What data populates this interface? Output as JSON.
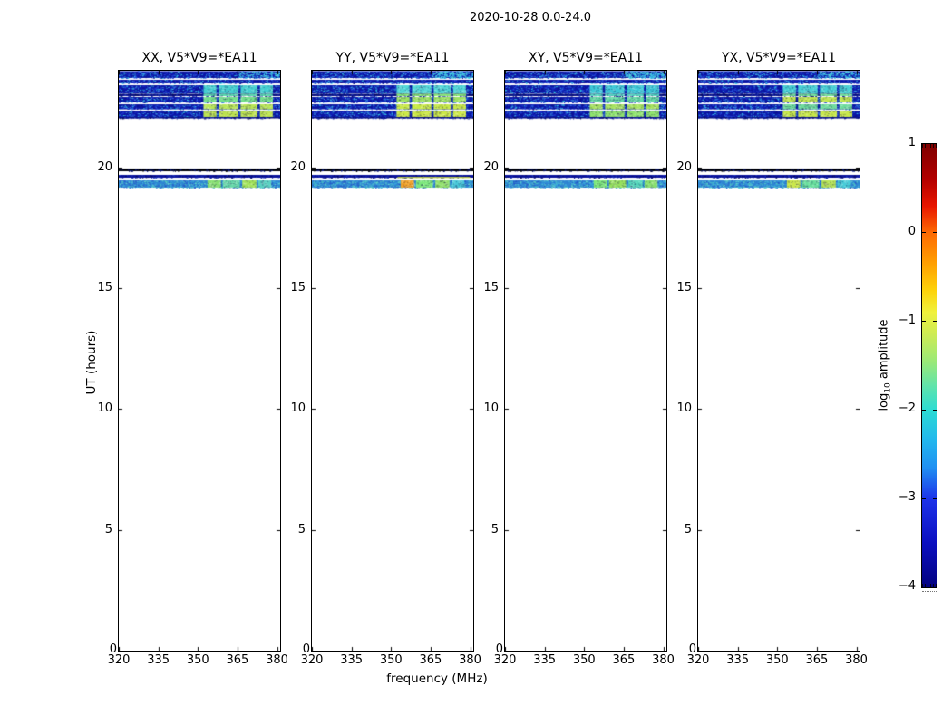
{
  "figure": {
    "title": "2020-10-28 0.0-24.0"
  },
  "axes": {
    "xlabel": "frequency (MHz)",
    "ylabel": "UT (hours)",
    "x_ticks": [
      {
        "label": "320",
        "mhz": 320
      },
      {
        "label": "335",
        "mhz": 335
      },
      {
        "label": "350",
        "mhz": 350
      },
      {
        "label": "365",
        "mhz": 365
      },
      {
        "label": "380",
        "mhz": 380
      }
    ],
    "y_ticks": [
      {
        "label": "20",
        "hours": 20
      },
      {
        "label": "15",
        "hours": 15
      },
      {
        "label": "10",
        "hours": 10
      },
      {
        "label": "5",
        "hours": 5
      }
    ],
    "y_tick_bottom": {
      "label": "0",
      "hours": 0
    }
  },
  "panels": [
    {
      "id": "XX",
      "title": "XX, V5*V9=*EA11"
    },
    {
      "id": "YY",
      "title": "YY, V5*V9=*EA11"
    },
    {
      "id": "XY",
      "title": "XY, V5*V9=*EA11"
    },
    {
      "id": "YX",
      "title": "YX, V5*V9=*EA11"
    }
  ],
  "colorbar": {
    "label_prefix": "log",
    "label_sub": "10",
    "label_suffix": " amplitude",
    "ticks": [
      {
        "label": "1",
        "value": 1
      },
      {
        "label": "0",
        "value": 0
      },
      {
        "label": "−1",
        "value": -1
      },
      {
        "label": "−2",
        "value": -2
      },
      {
        "label": "−3",
        "value": -3
      },
      {
        "label": "−4",
        "value": -4
      }
    ],
    "range": [
      -4,
      1
    ],
    "colormap": "jet"
  },
  "palettes": {
    "noise_base": "#0b17a6",
    "noise_speckle": [
      "#0a1190",
      "#1527c4",
      "#2542da",
      "#2e66e4",
      "#1b34cc",
      "#3f9fe0",
      "#35c8e0",
      "#0d0f88"
    ],
    "dark_base": "#070e7c",
    "dark_speckle": [
      "#0a1190",
      "#111ea0",
      "#1e38c0",
      "#04065a"
    ],
    "black_line": "#05070d",
    "black_line_speckle": [
      "#0a1260",
      "#05070d",
      "#102090"
    ],
    "navy_line": "#0a129c",
    "yy_yellow_line": "#d8e83c",
    "cyan_tail": [
      "#3fd2e8",
      "#5fe0d8",
      "#2fb8e8",
      "#49c9e0"
    ],
    "band_left_base": "#2f86d2",
    "band_left_speckle": [
      "#3fb2dc",
      "#2a66cc",
      "#52cabe",
      "#37a0dc",
      "#2553c4",
      "#66d4cc"
    ],
    "top_blocks": {
      "XX": [
        "#44cfd0",
        "#58d8ac",
        "#74e08c",
        "#b8e656",
        "#bce24e"
      ],
      "YY": [
        "#52d8d8",
        "#88e874",
        "#9ce262",
        "#c8ea44",
        "#cce846"
      ],
      "XY": [
        "#3ecad8",
        "#54d6c0",
        "#66dca6",
        "#a6e25e",
        "#90e46e"
      ],
      "YX": [
        "#48d0d4",
        "#70e096",
        "#c0e650",
        "#6edc9c",
        "#c8e84a"
      ]
    },
    "band_blocks": {
      "XX": [
        "#86e070",
        "#64d8a8",
        "#a2e45a",
        "#5ad2c2"
      ],
      "YY": [
        "#f0a229",
        "#7de87c",
        "#90e06a",
        "#4ac9d9"
      ],
      "XY": [
        "#7ce87a",
        "#97e25e",
        "#56d8bc",
        "#88e06e"
      ],
      "YX": [
        "#cbe84a",
        "#68df9d",
        "#b6e455",
        "#48ccd8"
      ]
    },
    "tick_color": "#000000",
    "colorbar_stops": [
      [
        0,
        "#7e0000"
      ],
      [
        0.08,
        "#b30000"
      ],
      [
        0.14,
        "#e81600"
      ],
      [
        0.2,
        "#fd6a02"
      ],
      [
        0.27,
        "#ffa001"
      ],
      [
        0.33,
        "#fdd20a"
      ],
      [
        0.38,
        "#f0f13c"
      ],
      [
        0.43,
        "#cdeb55"
      ],
      [
        0.49,
        "#9be977"
      ],
      [
        0.55,
        "#5ce3ae"
      ],
      [
        0.6,
        "#2cdcd3"
      ],
      [
        0.67,
        "#22b6ee"
      ],
      [
        0.73,
        "#2090f2"
      ],
      [
        0.8,
        "#1d33ea"
      ],
      [
        0.9,
        "#0b0fc0"
      ],
      [
        1,
        "#03027f"
      ]
    ]
  },
  "chart_data": {
    "type": "heatmap",
    "title": "2020-10-28 0.0-24.0",
    "xlabel": "frequency (MHz)",
    "ylabel": "UT (hours)",
    "xlim": [
      320,
      381
    ],
    "ylim": [
      0,
      24
    ],
    "x_ticks": [
      320,
      335,
      350,
      365,
      380
    ],
    "y_ticks": [
      0,
      5,
      10,
      15,
      20
    ],
    "panels": [
      "XX, V5*V9=*EA11",
      "YY, V5*V9=*EA11",
      "XY, V5*V9=*EA11",
      "YX, V5*V9=*EA11"
    ],
    "colorbar": {
      "label": "log10 amplitude",
      "range": [
        -4,
        1
      ],
      "ticks": [
        1,
        0,
        -1,
        -2,
        -3,
        -4
      ],
      "colormap": "jet"
    },
    "background_value": "blank/white (no data) outside observation blocks",
    "features": [
      {
        "description": "upper observation block of dynamic spectrum, dark-blue noise (log10 amp ~ -4 to -3) across 320-381 MHz, split into ~7 time rows by white flagged gaps; bright blocks (log10 amp ~ -2 to -0.5, cyan/green/yellow) in four frequency sub-bands between ~358 and 381 MHz; present identically in all four panels",
        "time_hours": [
          22.1,
          24.0
        ],
        "frequency_MHz": [
          320,
          381
        ]
      },
      {
        "description": "thin near-black line (heavily flagged row) just below the 20h tick in all panels",
        "time_hours": [
          19.8,
          19.9
        ],
        "frequency_MHz": [
          320,
          381
        ]
      },
      {
        "description": "narrow navy row plus a brighter cyan-blue band (log10 amp ~ -3 to -2) with bright green/yellow blocks at ~358-380 MHz (log10 amp ~ -1.5 to -0.5); YY panel additionally shows an orange block (~log10 amp 0) near 358-362 MHz",
        "time_hours": [
          19.2,
          19.6
        ],
        "frequency_MHz": [
          320,
          381
        ]
      }
    ]
  }
}
